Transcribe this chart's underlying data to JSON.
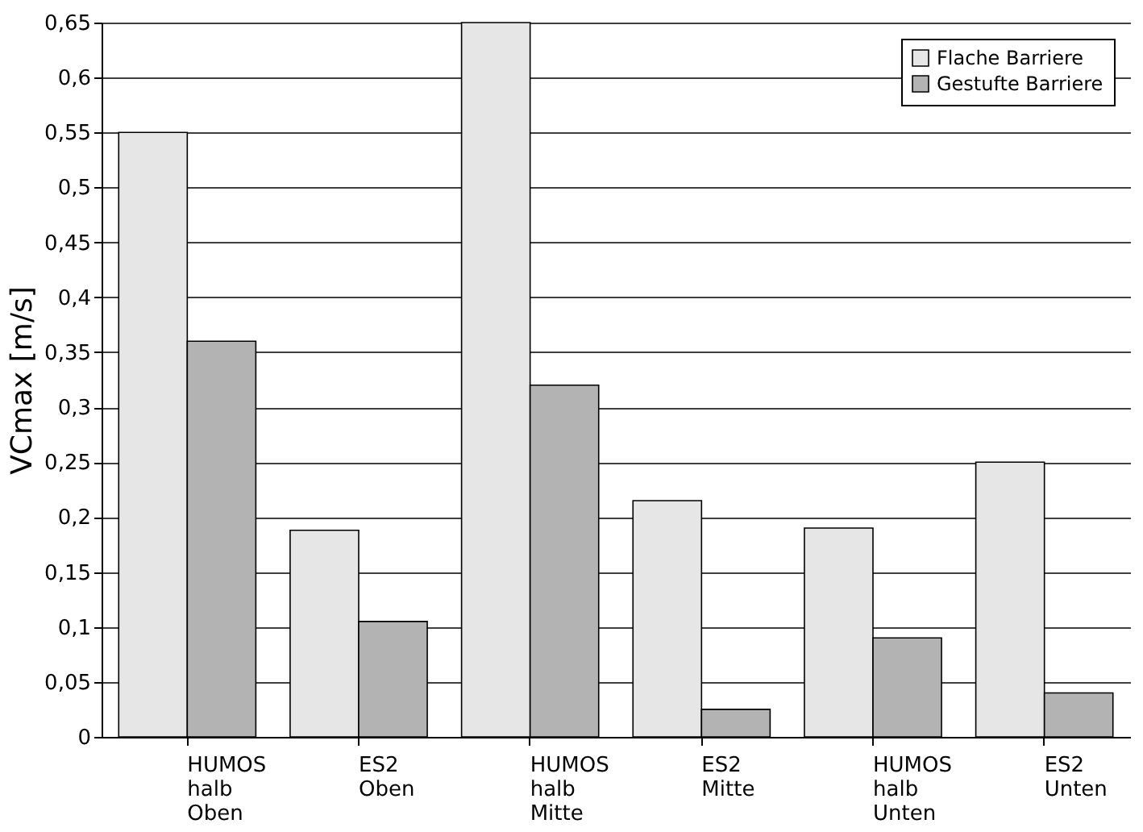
{
  "chart_data": {
    "type": "bar",
    "ylabel": "VCmax [m/s]",
    "categories": [
      "HUMOS\nhalb\nOben",
      "ES2\nOben",
      "HUMOS\nhalb\nMitte",
      "ES2\nMitte",
      "HUMOS\nhalb\nUnten",
      "ES2\nUnten"
    ],
    "series": [
      {
        "name": "Flache Barriere",
        "color": "#e6e6e6",
        "values": [
          0.55,
          0.188,
          0.65,
          0.215,
          0.19,
          0.25
        ]
      },
      {
        "name": "Gestufte Barriere",
        "color": "#b3b3b3",
        "values": [
          0.36,
          0.105,
          0.32,
          0.025,
          0.09,
          0.04
        ]
      }
    ],
    "ylim": [
      0,
      0.65
    ],
    "yticks": [
      0,
      {
        "value": 0.05,
        "label": "0,05"
      },
      {
        "value": 0.1,
        "label": "0,1"
      },
      {
        "value": 0.15,
        "label": "0,15"
      },
      {
        "value": 0.2,
        "label": "0,2"
      },
      {
        "value": 0.25,
        "label": "0,25"
      },
      {
        "value": 0.3,
        "label": "0,3"
      },
      {
        "value": 0.35,
        "label": "0,35"
      },
      {
        "value": 0.4,
        "label": "0,4"
      },
      {
        "value": 0.45,
        "label": "0,45"
      },
      {
        "value": 0.5,
        "label": "0,5"
      },
      {
        "value": 0.55,
        "label": "0,55"
      },
      {
        "value": 0.6,
        "label": "0,6"
      },
      {
        "value": 0.65,
        "label": "0,65"
      }
    ],
    "grid": "y",
    "legend": "top right"
  }
}
